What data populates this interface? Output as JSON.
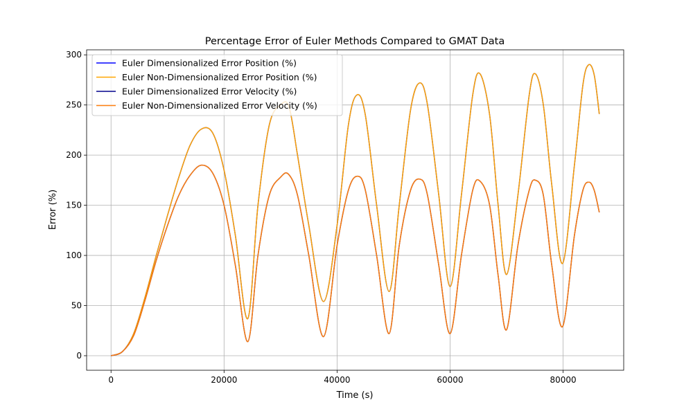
{
  "chart_data": {
    "type": "line",
    "title": "Percentage Error of Euler Methods Compared to GMAT Data",
    "xlabel": "Time (s)",
    "ylabel": "Error (%)",
    "xlim": [
      -4320,
      90720
    ],
    "ylim": [
      -14.5,
      305
    ],
    "xticks": [
      0,
      20000,
      40000,
      60000,
      80000
    ],
    "xtick_labels": [
      "0",
      "20000",
      "40000",
      "60000",
      "80000"
    ],
    "yticks": [
      0,
      50,
      100,
      150,
      200,
      250,
      300
    ],
    "ytick_labels": [
      "0",
      "50",
      "100",
      "150",
      "200",
      "250",
      "300"
    ],
    "grid": true,
    "legend_position": "upper-left",
    "series": [
      {
        "name": "Euler Dimensionalized Error Position (%)",
        "color": "#0000ff",
        "x": [
          0,
          2000,
          4000,
          6000,
          8000,
          10000,
          12000,
          14000,
          16000,
          18000,
          20000,
          22000,
          24200,
          26000,
          28000,
          30000,
          31500,
          33000,
          35000,
          37600,
          40000,
          42000,
          43500,
          45000,
          47000,
          49200,
          51000,
          53000,
          54600,
          56000,
          58000,
          60000,
          62000,
          64000,
          65300,
          67000,
          68500,
          70000,
          72000,
          74000,
          75100,
          76500,
          78000,
          79900,
          82000,
          83500,
          84500,
          85500,
          86400
        ],
        "y": [
          0,
          4,
          22,
          58,
          100,
          140,
          178,
          210,
          226,
          222,
          185,
          120,
          37,
          150,
          230,
          250,
          248,
          200,
          130,
          54,
          130,
          230,
          260,
          240,
          150,
          64,
          150,
          245,
          272,
          250,
          160,
          69,
          160,
          260,
          281,
          240,
          150,
          81,
          160,
          260,
          281,
          250,
          170,
          92,
          190,
          270,
          290,
          280,
          241
        ]
      },
      {
        "name": "Euler Non-Dimensionalized Error Position (%)",
        "color": "#ffa500",
        "x": [
          0,
          2000,
          4000,
          6000,
          8000,
          10000,
          12000,
          14000,
          16000,
          18000,
          20000,
          22000,
          24200,
          26000,
          28000,
          30000,
          31500,
          33000,
          35000,
          37600,
          40000,
          42000,
          43500,
          45000,
          47000,
          49200,
          51000,
          53000,
          54600,
          56000,
          58000,
          60000,
          62000,
          64000,
          65300,
          67000,
          68500,
          70000,
          72000,
          74000,
          75100,
          76500,
          78000,
          79900,
          82000,
          83500,
          84500,
          85500,
          86400
        ],
        "y": [
          0,
          4,
          22,
          58,
          100,
          140,
          178,
          210,
          226,
          222,
          185,
          120,
          37,
          150,
          230,
          250,
          248,
          200,
          130,
          54,
          130,
          230,
          260,
          240,
          150,
          64,
          150,
          245,
          272,
          250,
          160,
          69,
          160,
          260,
          281,
          240,
          150,
          81,
          160,
          260,
          281,
          250,
          170,
          92,
          190,
          270,
          290,
          280,
          241
        ]
      },
      {
        "name": "Euler Dimensionalized Error Velocity (%)",
        "color": "#00008b",
        "x": [
          0,
          2000,
          4000,
          6000,
          8000,
          10000,
          12000,
          14000,
          16000,
          18000,
          20000,
          22000,
          24200,
          26000,
          28000,
          30000,
          31400,
          33000,
          35000,
          37600,
          40000,
          42000,
          43600,
          45000,
          47000,
          49200,
          51000,
          53000,
          54700,
          56000,
          58000,
          60000,
          62000,
          64000,
          65300,
          67000,
          68500,
          70000,
          72000,
          74000,
          75100,
          76500,
          78000,
          79900,
          82000,
          83500,
          84600,
          85500,
          86400
        ],
        "y": [
          0,
          4,
          20,
          55,
          95,
          130,
          160,
          180,
          190,
          182,
          150,
          90,
          14,
          100,
          160,
          178,
          181,
          160,
          100,
          19,
          110,
          165,
          179,
          165,
          100,
          22,
          110,
          165,
          176,
          160,
          90,
          22,
          100,
          165,
          174,
          150,
          80,
          26,
          110,
          165,
          175,
          160,
          90,
          29,
          120,
          165,
          173,
          165,
          143
        ]
      },
      {
        "name": "Euler Non-Dimensionalized Error Velocity (%)",
        "color": "#ff7f0e",
        "x": [
          0,
          2000,
          4000,
          6000,
          8000,
          10000,
          12000,
          14000,
          16000,
          18000,
          20000,
          22000,
          24200,
          26000,
          28000,
          30000,
          31400,
          33000,
          35000,
          37600,
          40000,
          42000,
          43600,
          45000,
          47000,
          49200,
          51000,
          53000,
          54700,
          56000,
          58000,
          60000,
          62000,
          64000,
          65300,
          67000,
          68500,
          70000,
          72000,
          74000,
          75100,
          76500,
          78000,
          79900,
          82000,
          83500,
          84600,
          85500,
          86400
        ],
        "y": [
          0,
          4,
          20,
          55,
          95,
          130,
          160,
          180,
          190,
          182,
          150,
          90,
          14,
          100,
          160,
          178,
          181,
          160,
          100,
          19,
          110,
          165,
          179,
          165,
          100,
          22,
          110,
          165,
          176,
          160,
          90,
          22,
          100,
          165,
          174,
          150,
          80,
          26,
          110,
          165,
          175,
          160,
          90,
          29,
          120,
          165,
          173,
          165,
          143
        ]
      }
    ]
  }
}
